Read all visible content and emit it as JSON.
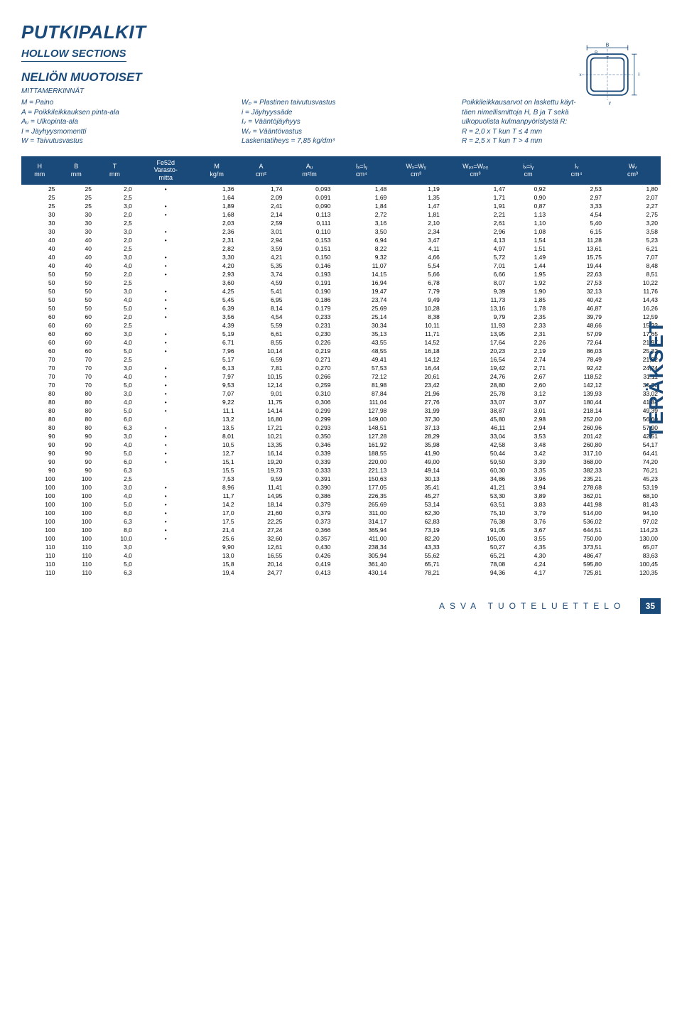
{
  "title": "PUTKIPALKIT",
  "subtitle": "HOLLOW SECTIONS",
  "section": "NELIÖN MUOTOISET",
  "mitta_label": "MITTAMERKINNÄT",
  "sidebar_text": "TERÄKSET",
  "definitions": {
    "col1": [
      "M = Paino",
      "A = Poikkileikkauksen pinta-ala",
      "Aᵤ = Ulkopinta-ala",
      "I = Jäyhyysmomentti",
      "W = Taivutusvastus"
    ],
    "col2": [
      "Wₚ = Plastinen taivutusvastus",
      "i = Jäyhyyssäde",
      "Iᵥ = Vääntöjäyhyys",
      "Wᵥ = Vääntövastus",
      "Laskentatiheys = 7,85 kg/dm³"
    ],
    "col3": [
      "Poikkileikkausarvot on laskettu käyt-",
      "täen nimellismittoja H, B ja T sekä",
      "ulkopuolista kulmanpyöristystä R:",
      "R = 2,0 x T kun T ≤ 4 mm",
      "R = 2,5 x T kun T > 4 mm"
    ]
  },
  "table": {
    "headers": [
      [
        "H",
        "mm"
      ],
      [
        "B",
        "mm"
      ],
      [
        "T",
        "mm"
      ],
      [
        "Fe52d",
        "Varasto-\nmitta"
      ],
      [
        "M",
        "kg/m"
      ],
      [
        "A",
        "cm²"
      ],
      [
        "Aᵤ",
        "m²/m"
      ],
      [
        "Iₓ=Iᵧ",
        "cm⁴"
      ],
      [
        "Wₓ=Wᵧ",
        "cm³"
      ],
      [
        "Wₚₓ=Wₚᵧ",
        "cm³"
      ],
      [
        "iₓ=iᵧ",
        "cm"
      ],
      [
        "Iᵥ",
        "cm⁴"
      ],
      [
        "Wᵥ",
        "cm³"
      ]
    ],
    "rows": [
      [
        "25",
        "25",
        "2,0",
        "•",
        "1,36",
        "1,74",
        "0,093",
        "1,48",
        "1,19",
        "1,47",
        "0,92",
        "2,53",
        "1,80"
      ],
      [
        "25",
        "25",
        "2,5",
        "",
        "1,64",
        "2,09",
        "0,091",
        "1,69",
        "1,35",
        "1,71",
        "0,90",
        "2,97",
        "2,07"
      ],
      [
        "25",
        "25",
        "3,0",
        "•",
        "1,89",
        "2,41",
        "0,090",
        "1,84",
        "1,47",
        "1,91",
        "0,87",
        "3,33",
        "2,27"
      ],
      [
        "30",
        "30",
        "2,0",
        "•",
        "1,68",
        "2,14",
        "0,113",
        "2,72",
        "1,81",
        "2,21",
        "1,13",
        "4,54",
        "2,75"
      ],
      [
        "30",
        "30",
        "2,5",
        "",
        "2,03",
        "2,59",
        "0,111",
        "3,16",
        "2,10",
        "2,61",
        "1,10",
        "5,40",
        "3,20"
      ],
      [
        "30",
        "30",
        "3,0",
        "•",
        "2,36",
        "3,01",
        "0,110",
        "3,50",
        "2,34",
        "2,96",
        "1,08",
        "6,15",
        "3,58"
      ],
      [
        "40",
        "40",
        "2,0",
        "•",
        "2,31",
        "2,94",
        "0,153",
        "6,94",
        "3,47",
        "4,13",
        "1,54",
        "11,28",
        "5,23"
      ],
      [
        "40",
        "40",
        "2,5",
        "",
        "2,82",
        "3,59",
        "0,151",
        "8,22",
        "4,11",
        "4,97",
        "1,51",
        "13,61",
        "6,21"
      ],
      [
        "40",
        "40",
        "3,0",
        "•",
        "3,30",
        "4,21",
        "0,150",
        "9,32",
        "4,66",
        "5,72",
        "1,49",
        "15,75",
        "7,07"
      ],
      [
        "40",
        "40",
        "4,0",
        "•",
        "4,20",
        "5,35",
        "0,146",
        "11,07",
        "5,54",
        "7,01",
        "1,44",
        "19,44",
        "8,48"
      ],
      [
        "50",
        "50",
        "2,0",
        "•",
        "2,93",
        "3,74",
        "0,193",
        "14,15",
        "5,66",
        "6,66",
        "1,95",
        "22,63",
        "8,51"
      ],
      [
        "50",
        "50",
        "2,5",
        "",
        "3,60",
        "4,59",
        "0,191",
        "16,94",
        "6,78",
        "8,07",
        "1,92",
        "27,53",
        "10,22"
      ],
      [
        "50",
        "50",
        "3,0",
        "•",
        "4,25",
        "5,41",
        "0,190",
        "19,47",
        "7,79",
        "9,39",
        "1,90",
        "32,13",
        "11,76"
      ],
      [
        "50",
        "50",
        "4,0",
        "•",
        "5,45",
        "6,95",
        "0,186",
        "23,74",
        "9,49",
        "11,73",
        "1,85",
        "40,42",
        "14,43"
      ],
      [
        "50",
        "50",
        "5,0",
        "•",
        "6,39",
        "8,14",
        "0,179",
        "25,69",
        "10,28",
        "13,16",
        "1,78",
        "46,87",
        "16,26"
      ],
      [
        "60",
        "60",
        "2,0",
        "•",
        "3,56",
        "4,54",
        "0,233",
        "25,14",
        "8,38",
        "9,79",
        "2,35",
        "39,79",
        "12,59"
      ],
      [
        "60",
        "60",
        "2,5",
        "",
        "4,39",
        "5,59",
        "0,231",
        "30,34",
        "10,11",
        "11,93",
        "2,33",
        "48,66",
        "15,22"
      ],
      [
        "60",
        "60",
        "3,0",
        "•",
        "5,19",
        "6,61",
        "0,230",
        "35,13",
        "11,71",
        "13,95",
        "2,31",
        "57,09",
        "17,65"
      ],
      [
        "60",
        "60",
        "4,0",
        "•",
        "6,71",
        "8,55",
        "0,226",
        "43,55",
        "14,52",
        "17,64",
        "2,26",
        "72,64",
        "21,97"
      ],
      [
        "60",
        "60",
        "5,0",
        "•",
        "7,96",
        "10,14",
        "0,219",
        "48,55",
        "16,18",
        "20,23",
        "2,19",
        "86,03",
        "25,32"
      ],
      [
        "70",
        "70",
        "2,5",
        "",
        "5,17",
        "6,59",
        "0,271",
        "49,41",
        "14,12",
        "16,54",
        "2,74",
        "78,49",
        "21,22"
      ],
      [
        "70",
        "70",
        "3,0",
        "•",
        "6,13",
        "7,81",
        "0,270",
        "57,53",
        "16,44",
        "19,42",
        "2,71",
        "92,42",
        "24,74"
      ],
      [
        "70",
        "70",
        "4,0",
        "•",
        "7,97",
        "10,15",
        "0,266",
        "72,12",
        "20,61",
        "24,76",
        "2,67",
        "118,52",
        "31,11"
      ],
      [
        "70",
        "70",
        "5,0",
        "•",
        "9,53",
        "12,14",
        "0,259",
        "81,98",
        "23,42",
        "28,80",
        "2,60",
        "142,12",
        "36,36"
      ],
      [
        "80",
        "80",
        "3,0",
        "•",
        "7,07",
        "9,01",
        "0,310",
        "87,84",
        "21,96",
        "25,78",
        "3,12",
        "139,93",
        "33,02"
      ],
      [
        "80",
        "80",
        "4,0",
        "•",
        "9,22",
        "11,75",
        "0,306",
        "111,04",
        "27,76",
        "33,07",
        "3,07",
        "180,44",
        "41,84"
      ],
      [
        "80",
        "80",
        "5,0",
        "•",
        "11,1",
        "14,14",
        "0,299",
        "127,98",
        "31,99",
        "38,87",
        "3,01",
        "218,14",
        "49,39"
      ],
      [
        "80",
        "80",
        "6,0",
        "",
        "13,2",
        "16,80",
        "0,299",
        "149,00",
        "37,30",
        "45,80",
        "2,98",
        "252,00",
        "56,60"
      ],
      [
        "80",
        "80",
        "6,3",
        "•",
        "13,5",
        "17,21",
        "0,293",
        "148,51",
        "37,13",
        "46,11",
        "2,94",
        "260,96",
        "57,90"
      ],
      [
        "90",
        "90",
        "3,0",
        "•",
        "8,01",
        "10,21",
        "0,350",
        "127,28",
        "28,29",
        "33,04",
        "3,53",
        "201,42",
        "42,51"
      ],
      [
        "90",
        "90",
        "4,0",
        "•",
        "10,5",
        "13,35",
        "0,346",
        "161,92",
        "35,98",
        "42,58",
        "3,48",
        "260,80",
        "54,17"
      ],
      [
        "90",
        "90",
        "5,0",
        "•",
        "12,7",
        "16,14",
        "0,339",
        "188,55",
        "41,90",
        "50,44",
        "3,42",
        "317,10",
        "64,41"
      ],
      [
        "90",
        "90",
        "6,0",
        "•",
        "15,1",
        "19,20",
        "0,339",
        "220,00",
        "49,00",
        "59,50",
        "3,39",
        "368,00",
        "74,20"
      ],
      [
        "90",
        "90",
        "6,3",
        "",
        "15,5",
        "19,73",
        "0,333",
        "221,13",
        "49,14",
        "60,30",
        "3,35",
        "382,33",
        "76,21"
      ],
      [
        "100",
        "100",
        "2,5",
        "",
        "7,53",
        "9,59",
        "0,391",
        "150,63",
        "30,13",
        "34,86",
        "3,96",
        "235,21",
        "45,23"
      ],
      [
        "100",
        "100",
        "3,0",
        "•",
        "8,96",
        "11,41",
        "0,390",
        "177,05",
        "35,41",
        "41,21",
        "3,94",
        "278,68",
        "53,19"
      ],
      [
        "100",
        "100",
        "4,0",
        "•",
        "11,7",
        "14,95",
        "0,386",
        "226,35",
        "45,27",
        "53,30",
        "3,89",
        "362,01",
        "68,10"
      ],
      [
        "100",
        "100",
        "5,0",
        "•",
        "14,2",
        "18,14",
        "0,379",
        "265,69",
        "53,14",
        "63,51",
        "3,83",
        "441,98",
        "81,43"
      ],
      [
        "100",
        "100",
        "6,0",
        "•",
        "17,0",
        "21,60",
        "0,379",
        "311,00",
        "62,30",
        "75,10",
        "3,79",
        "514,00",
        "94,10"
      ],
      [
        "100",
        "100",
        "6,3",
        "•",
        "17,5",
        "22,25",
        "0,373",
        "314,17",
        "62,83",
        "76,38",
        "3,76",
        "536,02",
        "97,02"
      ],
      [
        "100",
        "100",
        "8,0",
        "•",
        "21,4",
        "27,24",
        "0,366",
        "365,94",
        "73,19",
        "91,05",
        "3,67",
        "644,51",
        "114,23"
      ],
      [
        "100",
        "100",
        "10,0",
        "•",
        "25,6",
        "32,60",
        "0,357",
        "411,00",
        "82,20",
        "105,00",
        "3,55",
        "750,00",
        "130,00"
      ],
      [
        "110",
        "110",
        "3,0",
        "",
        "9,90",
        "12,61",
        "0,430",
        "238,34",
        "43,33",
        "50,27",
        "4,35",
        "373,51",
        "65,07"
      ],
      [
        "110",
        "110",
        "4,0",
        "",
        "13,0",
        "16,55",
        "0,426",
        "305,94",
        "55,62",
        "65,21",
        "4,30",
        "486,47",
        "83,63"
      ],
      [
        "110",
        "110",
        "5,0",
        "",
        "15,8",
        "20,14",
        "0,419",
        "361,40",
        "65,71",
        "78,08",
        "4,24",
        "595,80",
        "100,45"
      ],
      [
        "110",
        "110",
        "6,3",
        "",
        "19,4",
        "24,77",
        "0,413",
        "430,14",
        "78,21",
        "94,36",
        "4,17",
        "725,81",
        "120,35"
      ]
    ]
  },
  "footer_text": "ASVA TUOTELUETTELO",
  "page_number": "35",
  "colors": {
    "brand": "#1a4a7a",
    "bg": "#ffffff"
  }
}
